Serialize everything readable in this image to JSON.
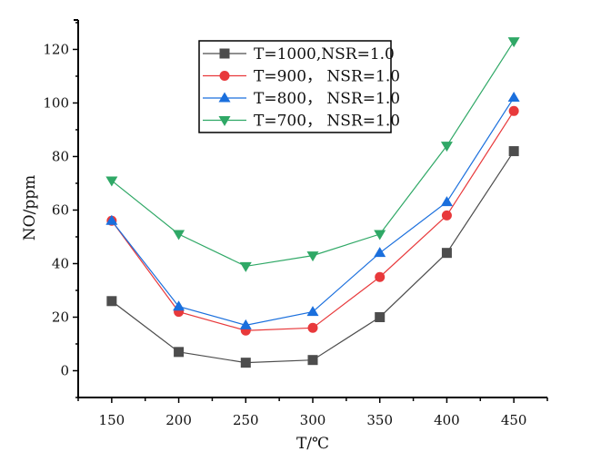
{
  "chart_data": {
    "type": "line",
    "title": "",
    "xlabel": "T/℃",
    "ylabel": "NO/ppm",
    "xlim": [
      125,
      475
    ],
    "ylim": [
      -10,
      131
    ],
    "x": [
      150,
      200,
      250,
      300,
      350,
      400,
      450
    ],
    "xticks": [
      150,
      200,
      250,
      300,
      350,
      400,
      450
    ],
    "xtick_labels": [
      "150",
      "200",
      "250",
      "300",
      "350",
      "400",
      "450"
    ],
    "yticks": [
      0,
      20,
      40,
      60,
      80,
      100,
      120
    ],
    "ytick_labels": [
      "0",
      "20",
      "40",
      "60",
      "80",
      "100",
      "120"
    ],
    "grid": false,
    "legend_position": "top-center",
    "series": [
      {
        "name": "T=1000,NSR=1.0",
        "color": "#4d4d4d",
        "marker": "square",
        "values": [
          26,
          7,
          3,
          4,
          20,
          44,
          82
        ]
      },
      {
        "name": "T=900， NSR=1.0",
        "color": "#e8393b",
        "marker": "circle",
        "values": [
          56,
          22,
          15,
          16,
          35,
          58,
          97
        ]
      },
      {
        "name": "T=800， NSR=1.0",
        "color": "#1a6fdd",
        "marker": "triangle-up",
        "values": [
          56,
          24,
          17,
          22,
          44,
          63,
          102
        ]
      },
      {
        "name": "T=700， NSR=1.0",
        "color": "#2fa866",
        "marker": "triangle-down",
        "values": [
          71,
          51,
          39,
          43,
          51,
          84,
          123
        ]
      }
    ]
  }
}
